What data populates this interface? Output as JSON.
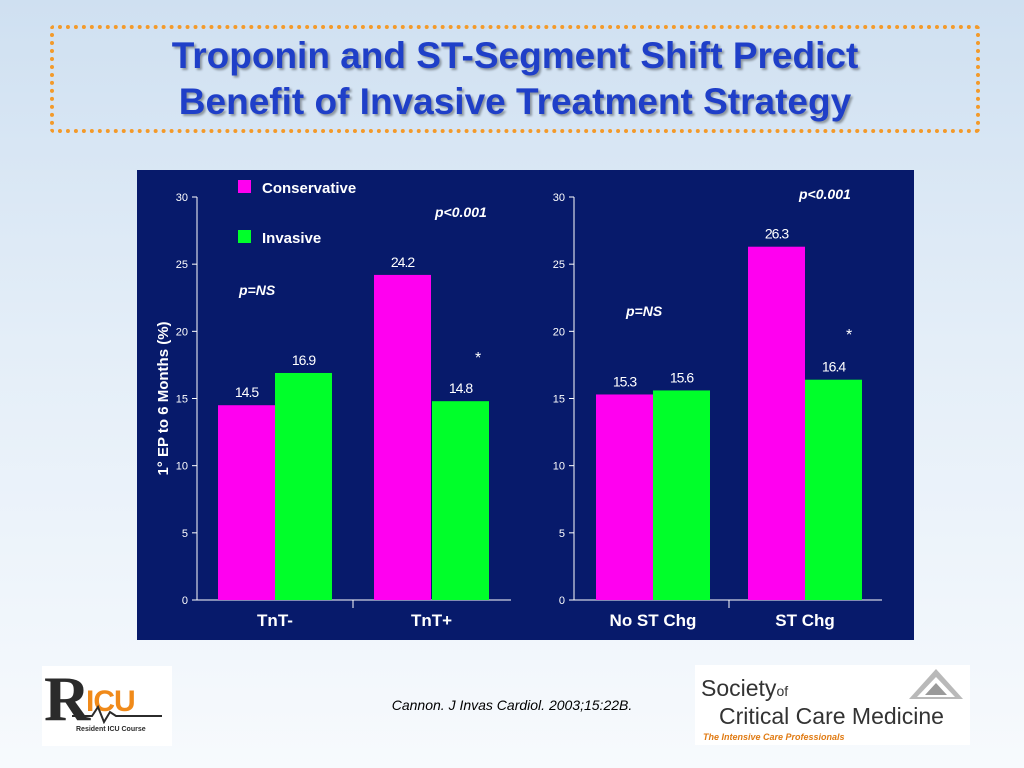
{
  "slide": {
    "title_line1": "Troponin and ST-Segment Shift Predict",
    "title_line2": "Benefit of Invasive Treatment Strategy",
    "citation": "Cannon. J Invas Cardiol. 2003;15:22B."
  },
  "logos": {
    "ricu_r": "R",
    "ricu_icu": "ICU",
    "ricu_course": "Resident ICU Course",
    "sccm_society": "Society",
    "sccm_of": "of",
    "sccm_ccm": "Critical Care Medicine",
    "sccm_tagline": "The Intensive Care Professionals"
  },
  "colors": {
    "conservative": "#ff00f0",
    "invasive": "#00ff2a",
    "chart_background": "#071a6b",
    "title": "#1f3fc8",
    "title_border": "#f39a2a"
  },
  "chart_data": [
    {
      "type": "bar",
      "categories": [
        "TnT-",
        "TnT+"
      ],
      "series": [
        {
          "name": "Conservative",
          "values": [
            14.5,
            24.2
          ]
        },
        {
          "name": "Invasive",
          "values": [
            16.9,
            14.8
          ]
        }
      ],
      "value_labels": [
        [
          "14.5",
          "24.2"
        ],
        [
          "16.9",
          "14.8"
        ]
      ],
      "ylabel": "1° EP to 6 Months (%)",
      "ylim": [
        0,
        30
      ],
      "yticks": [
        "0",
        "5",
        "10",
        "15",
        "20",
        "25",
        "30"
      ],
      "annotations": {
        "left": "p=NS",
        "right": "p<0.001",
        "star": "*"
      },
      "legend": {
        "conservative": "Conservative",
        "invasive": "Invasive",
        "placement": "top-left"
      }
    },
    {
      "type": "bar",
      "categories": [
        "No ST Chg",
        "ST Chg"
      ],
      "series": [
        {
          "name": "Conservative",
          "values": [
            15.3,
            26.3
          ]
        },
        {
          "name": "Invasive",
          "values": [
            15.6,
            16.4
          ]
        }
      ],
      "value_labels": [
        [
          "15.3",
          "26.3"
        ],
        [
          "15.6",
          "16.4"
        ]
      ],
      "ylim": [
        0,
        30
      ],
      "yticks": [
        "0",
        "5",
        "10",
        "15",
        "20",
        "25",
        "30"
      ],
      "annotations": {
        "left": "p=NS",
        "right": "p<0.001",
        "star": "*"
      }
    }
  ]
}
